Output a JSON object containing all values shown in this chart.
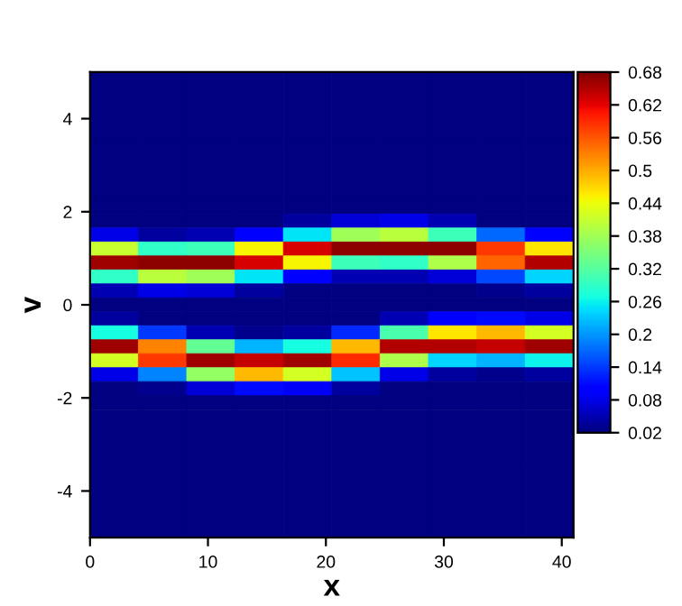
{
  "chart_data": {
    "type": "heatmap",
    "xlabel": "x",
    "ylabel": "v",
    "x": [
      2.05,
      6.15,
      10.25,
      14.35,
      18.45,
      22.55,
      26.65,
      30.75,
      34.85,
      38.95
    ],
    "y": [
      4.5,
      2.4,
      2.1,
      1.8,
      1.5,
      1.2,
      0.9,
      0.6,
      0.3,
      0,
      -0.3,
      -0.6,
      -0.9,
      -1.2,
      -1.5,
      -1.8,
      -2.1,
      -2.4,
      -4.5
    ],
    "cells": [
      [
        0.02,
        0.02,
        0.02,
        0.02,
        0.02,
        0.02,
        0.02,
        0.02,
        0.02,
        0.02
      ],
      [
        0.02,
        0.02,
        0.02,
        0.02,
        0.02,
        0.02,
        0.02,
        0.02,
        0.02,
        0.02
      ],
      [
        0.02,
        0.02,
        0.02,
        0.02,
        0.02,
        0.02,
        0.02,
        0.02,
        0.02,
        0.02
      ],
      [
        0.02,
        0.02,
        0.02,
        0.02,
        0.04,
        0.07,
        0.08,
        0.05,
        0.02,
        0.02
      ],
      [
        0.08,
        0.04,
        0.05,
        0.1,
        0.25,
        0.38,
        0.4,
        0.3,
        0.17,
        0.1
      ],
      [
        0.41,
        0.29,
        0.3,
        0.45,
        0.63,
        0.67,
        0.67,
        0.67,
        0.58,
        0.46
      ],
      [
        0.66,
        0.67,
        0.67,
        0.63,
        0.45,
        0.3,
        0.29,
        0.39,
        0.55,
        0.65
      ],
      [
        0.29,
        0.4,
        0.38,
        0.25,
        0.1,
        0.05,
        0.05,
        0.07,
        0.15,
        0.24
      ],
      [
        0.05,
        0.08,
        0.07,
        0.04,
        0.02,
        0.02,
        0.02,
        0.02,
        0.03,
        0.04
      ],
      [
        0.02,
        0.02,
        0.02,
        0.02,
        0.02,
        0.02,
        0.02,
        0.02,
        0.02,
        0.02
      ],
      [
        0.04,
        0.02,
        0.02,
        0.02,
        0.02,
        0.02,
        0.05,
        0.1,
        0.11,
        0.08
      ],
      [
        0.27,
        0.14,
        0.05,
        0.03,
        0.04,
        0.13,
        0.31,
        0.46,
        0.49,
        0.42
      ],
      [
        0.66,
        0.53,
        0.33,
        0.22,
        0.27,
        0.49,
        0.65,
        0.65,
        0.64,
        0.66
      ],
      [
        0.42,
        0.58,
        0.66,
        0.64,
        0.66,
        0.59,
        0.39,
        0.24,
        0.22,
        0.26
      ],
      [
        0.08,
        0.19,
        0.37,
        0.49,
        0.42,
        0.23,
        0.08,
        0.04,
        0.03,
        0.04
      ],
      [
        0.02,
        0.03,
        0.07,
        0.11,
        0.09,
        0.04,
        0.02,
        0.02,
        0.02,
        0.02
      ],
      [
        0.02,
        0.02,
        0.02,
        0.02,
        0.02,
        0.02,
        0.02,
        0.02,
        0.02,
        0.02
      ],
      [
        0.02,
        0.02,
        0.02,
        0.02,
        0.02,
        0.02,
        0.02,
        0.02,
        0.02,
        0.02
      ],
      [
        0.02,
        0.02,
        0.02,
        0.02,
        0.02,
        0.02,
        0.02,
        0.02,
        0.02,
        0.02
      ]
    ],
    "xlim": [
      0,
      41
    ],
    "ylim": [
      -5,
      5
    ],
    "xticks": [
      0,
      10,
      20,
      30,
      40
    ],
    "yticks": [
      -4,
      -2,
      0,
      2,
      4
    ],
    "clim": [
      0.02,
      0.68
    ],
    "cticks": [
      0.02,
      0.08,
      0.14,
      0.2,
      0.26,
      0.32,
      0.38,
      0.44,
      0.5,
      0.56,
      0.62,
      0.68
    ],
    "grid": false
  }
}
